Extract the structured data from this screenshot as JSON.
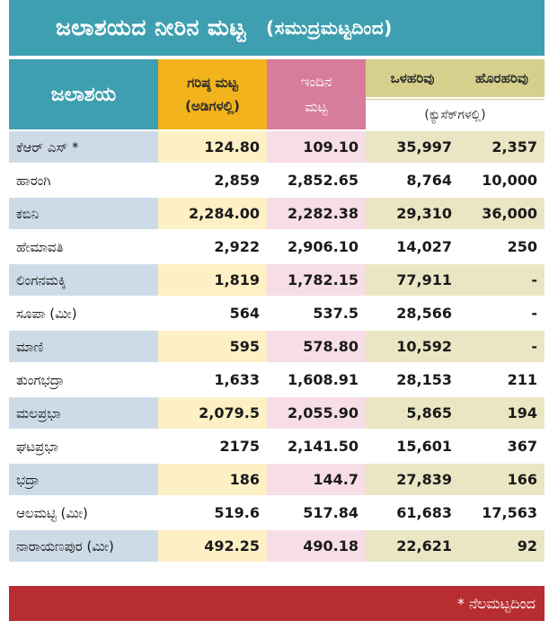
{
  "title": {
    "main": "ಜಲಾಶಯದ ನೀರಿನ ಮಟ್ಟ",
    "sub": "(ಸಮುದ್ರಮಟ್ಟದಿಂದ)"
  },
  "header": {
    "reservoir": "ಜಲಾಶಯ",
    "max_level_line1": "ಗರಿಷ್ಠ ಮಟ್ಟ",
    "max_level_line2": "(ಅಡಿಗಳಲ್ಲಿ)",
    "today_level_line1": "ಇಂದಿನ",
    "today_level_line2": "ಮಟ್ಟ",
    "inflow": "ಒಳಹರಿವು",
    "outflow": "ಹೊರಹರಿವು",
    "flow_unit": "(ಕ್ಯುಸೆಕ್‌ಗಳಲ್ಲಿ)"
  },
  "rows": [
    {
      "name": "ಕೆಆರ್ ಎಸ್ *",
      "max": "124.80",
      "today": "109.10",
      "inflow": "35,997",
      "outflow": "2,357"
    },
    {
      "name": "ಹಾರಂಗಿ",
      "max": "2,859",
      "today": "2,852.65",
      "inflow": "8,764",
      "outflow": "10,000"
    },
    {
      "name": "ಕಬಿನಿ",
      "max": "2,284.00",
      "today": "2,282.38",
      "inflow": "29,310",
      "outflow": "36,000"
    },
    {
      "name": "ಹೇಮಾವತಿ",
      "max": "2,922",
      "today": "2,906.10",
      "inflow": "14,027",
      "outflow": "250"
    },
    {
      "name": "ಲಿಂಗನಮಕ್ಕಿ",
      "max": "1,819",
      "today": "1,782.15",
      "inflow": "77,911",
      "outflow": "-"
    },
    {
      "name": "ಸೂಪಾ (ಮೀ)",
      "max": "564",
      "today": "537.5",
      "inflow": "28,566",
      "outflow": "-"
    },
    {
      "name": "ಮಾಣಿ",
      "max": "595",
      "today": "578.80",
      "inflow": "10,592",
      "outflow": "-"
    },
    {
      "name": "ತುಂಗಭದ್ರಾ",
      "max": "1,633",
      "today": "1,608.91",
      "inflow": "28,153",
      "outflow": "211"
    },
    {
      "name": "ಮಲಪ್ರಭಾ",
      "max": "2,079.5",
      "today": "2,055.90",
      "inflow": "5,865",
      "outflow": "194"
    },
    {
      "name": "ಘಟಪ್ರಭಾ",
      "max": "2175",
      "today": "2,141.50",
      "inflow": "15,601",
      "outflow": "367"
    },
    {
      "name": "ಭದ್ರಾ",
      "max": "186",
      "today": "144.7",
      "inflow": "27,839",
      "outflow": "166"
    },
    {
      "name": "ಆಲಮಟ್ಟಿ (ಮೀ)",
      "max": "519.6",
      "today": "517.84",
      "inflow": "61,683",
      "outflow": "17,563"
    },
    {
      "name": "ನಾರಾಯಣಪುರ (ಮೀ)",
      "max": "492.25",
      "today": "490.18",
      "inflow": "22,621",
      "outflow": "92"
    }
  ],
  "footer": {
    "note": "* ನೆಲಮಟ್ಟದಿಂದ"
  },
  "colors": {
    "title_bg": "#3e9fb0",
    "max_header": "#f2b31c",
    "today_header": "#d87c9b",
    "flow_header": "#d6d08c",
    "footer_bg": "#b72d30"
  }
}
